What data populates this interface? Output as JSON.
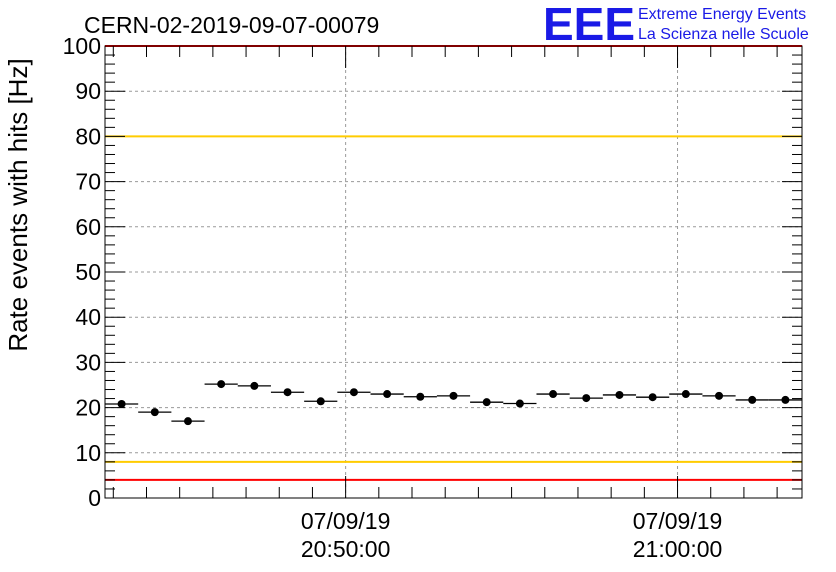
{
  "header": {
    "run_title": "CERN-02-2019-09-07-00079",
    "logo_text": "EEE",
    "logo_line1": "Extreme Energy Events",
    "logo_line2": "La Scienza nelle Scuole"
  },
  "colors": {
    "red_line": "#ff0000",
    "yellow_line": "#ffcc00",
    "logo": "#1a1ae6",
    "grid": "#9a9a9a",
    "marker": "#000000"
  },
  "chart_data": {
    "type": "scatter",
    "title": "CERN-02-2019-09-07-00079",
    "ylabel": "Rate events with hits [Hz]",
    "xlabel": "",
    "ylim": [
      0,
      100
    ],
    "yticks": [
      0,
      10,
      20,
      30,
      40,
      50,
      60,
      70,
      80,
      90,
      100
    ],
    "xlim": [
      "2019-09-07 20:42:45",
      "2019-09-07 21:03:45"
    ],
    "xticks": [
      {
        "date": "07/09/19",
        "time": "20:50:00",
        "x": "2019-09-07 20:50:00"
      },
      {
        "date": "07/09/19",
        "time": "21:00:00",
        "x": "2019-09-07 21:00:00"
      }
    ],
    "grid": true,
    "bin_width_seconds": 60,
    "x": [
      "2019-09-07 20:43:15",
      "2019-09-07 20:44:15",
      "2019-09-07 20:45:15",
      "2019-09-07 20:46:15",
      "2019-09-07 20:47:15",
      "2019-09-07 20:48:15",
      "2019-09-07 20:49:15",
      "2019-09-07 20:50:15",
      "2019-09-07 20:51:15",
      "2019-09-07 20:52:15",
      "2019-09-07 20:53:15",
      "2019-09-07 20:54:15",
      "2019-09-07 20:55:15",
      "2019-09-07 20:56:15",
      "2019-09-07 20:57:15",
      "2019-09-07 20:58:15",
      "2019-09-07 20:59:15",
      "2019-09-07 21:00:15",
      "2019-09-07 21:01:15",
      "2019-09-07 21:02:15",
      "2019-09-07 21:03:15"
    ],
    "y": [
      20.8,
      19.0,
      17.0,
      25.2,
      24.8,
      23.4,
      21.4,
      23.4,
      23.0,
      22.4,
      22.6,
      21.2,
      20.9,
      23.0,
      22.1,
      22.8,
      22.3,
      23.0,
      22.6,
      21.7,
      21.7
    ],
    "reference_lines": [
      {
        "y": 100,
        "color": "red"
      },
      {
        "y": 80,
        "color": "yellow"
      },
      {
        "y": 8,
        "color": "yellow"
      },
      {
        "y": 4,
        "color": "red"
      }
    ]
  }
}
